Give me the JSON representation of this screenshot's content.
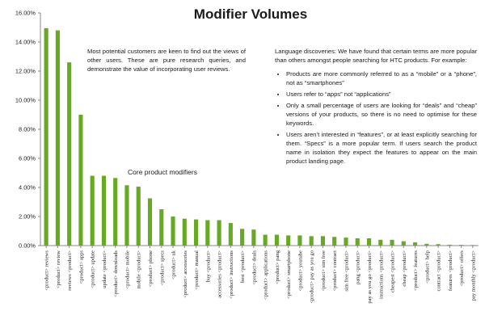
{
  "chart_data": {
    "type": "bar",
    "title": "Modifier Volumes",
    "xlabel": "",
    "ylabel": "",
    "ylim": [
      0,
      16
    ],
    "y_ticks": [
      "0.00%",
      "2.00%",
      "4.00%",
      "6.00%",
      "8.00%",
      "10.00%",
      "12.00%",
      "14.00%",
      "16.00%"
    ],
    "grid": false,
    "bar_color": "#66aa22",
    "categories": [
      "<product> reviews",
      "<product> review",
      "reviews <product>",
      "<product> apps",
      "<product> update",
      "update <product>",
      "<product> downloads",
      "<product> mobile",
      "mobile <product>",
      "<product> phone",
      "<product> specs",
      "<product> uk",
      "<product> accessories",
      "<product> manual",
      "buy <product>",
      "accessories <product>",
      "<product> instructions",
      "best <product>",
      "<product> deals",
      "<product> applications",
      "<product> pang",
      "<product> smartphone",
      "<product> youtube",
      "<product> pay as you go",
      "<product> sim free",
      "<product> contract",
      "sim free <product>",
      "pang <product>",
      "pay as you go <product>",
      "instructions <product>",
      "cheapest <product>",
      "cheap <product>",
      "<product> features",
      "<product> help",
      "contract <product>",
      "features <product>",
      "<product> offers",
      "pay monthly <product>"
    ],
    "values": [
      14.95,
      14.8,
      12.6,
      9.0,
      4.8,
      4.8,
      4.65,
      4.15,
      4.05,
      3.25,
      2.5,
      2.0,
      1.85,
      1.8,
      1.75,
      1.75,
      1.55,
      1.15,
      1.1,
      0.75,
      0.75,
      0.7,
      0.7,
      0.65,
      0.65,
      0.6,
      0.55,
      0.5,
      0.5,
      0.4,
      0.4,
      0.3,
      0.22,
      0.12,
      0.1,
      0.06,
      0.05,
      0.04
    ],
    "annotations": {
      "left_note": "Most potential customers are keen to find out the views of other users. These are pure research queries, and demonstrate the value of incorporating user reviews.",
      "right_intro": "Language discoveries: We have found that certain terms are more popular than others amongst people searching for HTC products. For example:",
      "right_bullets": [
        "Products are more commonly referred to as a “mobile” or a “phone”, not as “smartphones”",
        "Users refer to “apps” not “applications”",
        "Only a small percentage of users are looking for “deals” and “cheap” versions of your products, so there is no need to optimise for these keywords.",
        "Users aren’t interested in “features”, or at least explicitly searching for them. “Specs” is a more popular term. If users search the product name in isolation they expect the features to appear on the main product landing page."
      ],
      "core_label": "Core product modifiers"
    }
  }
}
